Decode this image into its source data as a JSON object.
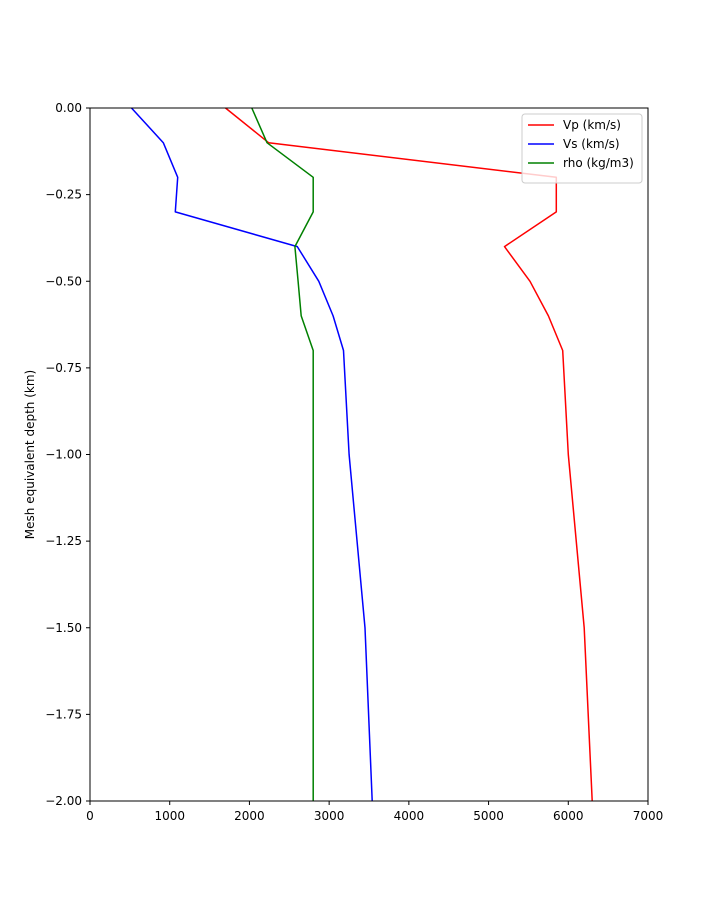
{
  "chart_data": {
    "type": "line",
    "title": "",
    "xlabel": "",
    "ylabel": "Mesh equivalent depth (km)",
    "xlim": [
      0,
      7000
    ],
    "ylim": [
      -2.0,
      0.0
    ],
    "xticks": [
      0,
      1000,
      2000,
      3000,
      4000,
      5000,
      6000,
      7000
    ],
    "xtick_labels": [
      "0",
      "1000",
      "2000",
      "3000",
      "4000",
      "5000",
      "6000",
      "7000"
    ],
    "yticks": [
      0.0,
      -0.25,
      -0.5,
      -0.75,
      -1.0,
      -1.25,
      -1.5,
      -1.75,
      -2.0
    ],
    "ytick_labels": [
      "0.00",
      "−0.25",
      "−0.50",
      "−0.75",
      "−1.00",
      "−1.25",
      "−1.50",
      "−1.75",
      "−2.00"
    ],
    "grid": false,
    "legend_position": "top-right",
    "series": [
      {
        "name": "Vp (km/s)",
        "color": "#ff0000",
        "points": [
          [
            1700,
            0.0
          ],
          [
            2240,
            -0.1
          ],
          [
            5850,
            -0.2
          ],
          [
            5850,
            -0.3
          ],
          [
            5200,
            -0.4
          ],
          [
            5520,
            -0.5
          ],
          [
            5750,
            -0.6
          ],
          [
            5930,
            -0.7
          ],
          [
            6000,
            -1.0
          ],
          [
            6200,
            -1.5
          ],
          [
            6300,
            -2.0
          ]
        ]
      },
      {
        "name": "Vs (km/s)",
        "color": "#0000ff",
        "points": [
          [
            520,
            0.0
          ],
          [
            920,
            -0.1
          ],
          [
            1100,
            -0.2
          ],
          [
            1070,
            -0.3
          ],
          [
            2600,
            -0.4
          ],
          [
            2870,
            -0.5
          ],
          [
            3050,
            -0.6
          ],
          [
            3180,
            -0.7
          ],
          [
            3250,
            -1.0
          ],
          [
            3450,
            -1.5
          ],
          [
            3540,
            -2.0
          ]
        ]
      },
      {
        "name": "rho (kg/m3)",
        "color": "#008000",
        "points": [
          [
            2030,
            0.0
          ],
          [
            2220,
            -0.1
          ],
          [
            2800,
            -0.2
          ],
          [
            2800,
            -0.3
          ],
          [
            2570,
            -0.4
          ],
          [
            2610,
            -0.5
          ],
          [
            2650,
            -0.6
          ],
          [
            2800,
            -0.7
          ],
          [
            2800,
            -1.0
          ],
          [
            2800,
            -1.5
          ],
          [
            2800,
            -2.0
          ]
        ]
      }
    ]
  }
}
